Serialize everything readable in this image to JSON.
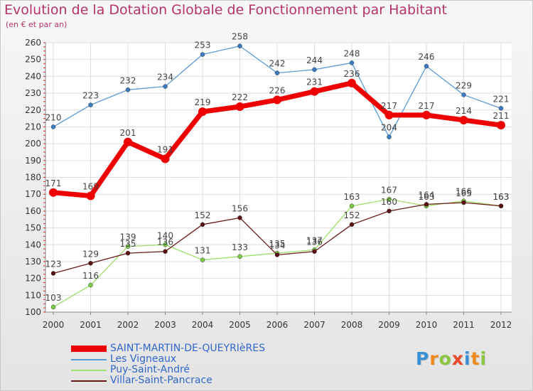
{
  "title": "Evolution de la Dotation Globale de Fonctionnement par Habitant",
  "subtitle": "(en € et par an)",
  "logo": {
    "text": "Proxiti",
    "letter_colors": [
      "#3a8fd6",
      "#f08a1c",
      "#8cc63e",
      "#e84a2b",
      "#3a8fd6",
      "#f08a1c",
      "#8cc63e"
    ]
  },
  "chart_data": {
    "type": "line",
    "title": "Evolution de la Dotation Globale de Fonctionnement par Habitant",
    "ylabel": "(en € et par an)",
    "xlabel": "",
    "x": [
      "2000",
      "2001",
      "2002",
      "2003",
      "2004",
      "2005",
      "2006",
      "2007",
      "2008",
      "2009",
      "2010",
      "2011",
      "2012"
    ],
    "ylim": [
      100,
      260
    ],
    "yticks": [
      100,
      110,
      120,
      130,
      140,
      150,
      160,
      170,
      180,
      190,
      200,
      210,
      220,
      230,
      240,
      250,
      260
    ],
    "grid": true,
    "legend": "bottom-left",
    "series": [
      {
        "name": "Les Vigneaux",
        "color": "#5a9bd5",
        "point_color": "#3a7cc4",
        "style": "thin",
        "values": [
          210,
          223,
          232,
          234,
          253,
          258,
          242,
          244,
          248,
          204,
          246,
          229,
          221
        ]
      },
      {
        "name": "Puy-Saint-André",
        "color": "#9de06a",
        "point_color": "#7ccc44",
        "style": "thin",
        "values": [
          103,
          116,
          139,
          140,
          131,
          133,
          135,
          137,
          163,
          167,
          163,
          166,
          163
        ]
      },
      {
        "name": "Villar-Saint-Pancrace",
        "color": "#6b1a1a",
        "point_color": "#5a1010",
        "style": "thin",
        "values": [
          123,
          129,
          135,
          136,
          152,
          156,
          134,
          136,
          152,
          160,
          164,
          165,
          163
        ]
      },
      {
        "name": "SAINT-MARTIN-DE-QUEYRIèRES",
        "color": "#ee0000",
        "point_color": "#ee0000",
        "style": "thick",
        "values": [
          171,
          169,
          201,
          191,
          219,
          222,
          226,
          231,
          236,
          217,
          217,
          214,
          211
        ]
      }
    ],
    "legend_order": [
      "SAINT-MARTIN-DE-QUEYRIèRES",
      "Les Vigneaux",
      "Puy-Saint-André",
      "Villar-Saint-Pancrace"
    ]
  }
}
